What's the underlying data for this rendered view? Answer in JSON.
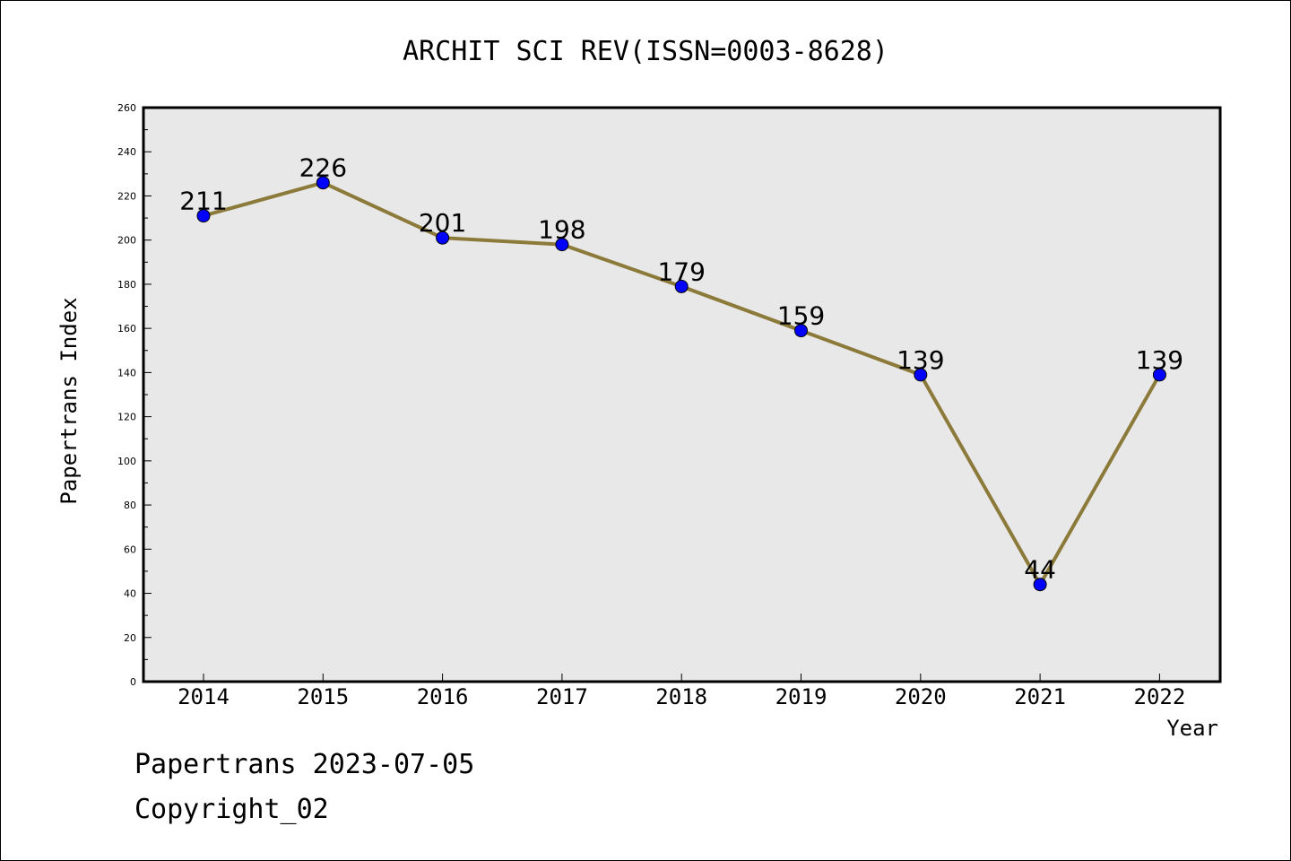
{
  "footer": {
    "line1": "Papertrans 2023-07-05",
    "line2": "Copyright_02"
  },
  "chart_data": {
    "type": "line",
    "title": "ARCHIT SCI REV(ISSN=0003-8628)",
    "xlabel": "Year",
    "ylabel": "Papertrans Index",
    "categories": [
      "2014",
      "2015",
      "2016",
      "2017",
      "2018",
      "2019",
      "2020",
      "2021",
      "2022"
    ],
    "values": [
      211,
      226,
      201,
      198,
      179,
      159,
      139,
      44,
      139
    ],
    "data_labels": [
      "211",
      "226",
      "201",
      "198",
      "179",
      "159",
      "139",
      "44",
      "139"
    ],
    "ylim": [
      0,
      260
    ],
    "yticks": [
      0,
      20,
      40,
      60,
      80,
      100,
      120,
      140,
      160,
      180,
      200,
      220,
      240,
      260
    ],
    "ytick_labels": [
      "0",
      "20",
      "40",
      "60",
      "80",
      "100",
      "120",
      "140",
      "160",
      "180",
      "200",
      "220",
      "240",
      "260"
    ],
    "grid": false,
    "colors": {
      "line": "#8c7a3a",
      "marker": "#0000ff",
      "plot_background": "#e8e8e8"
    }
  }
}
